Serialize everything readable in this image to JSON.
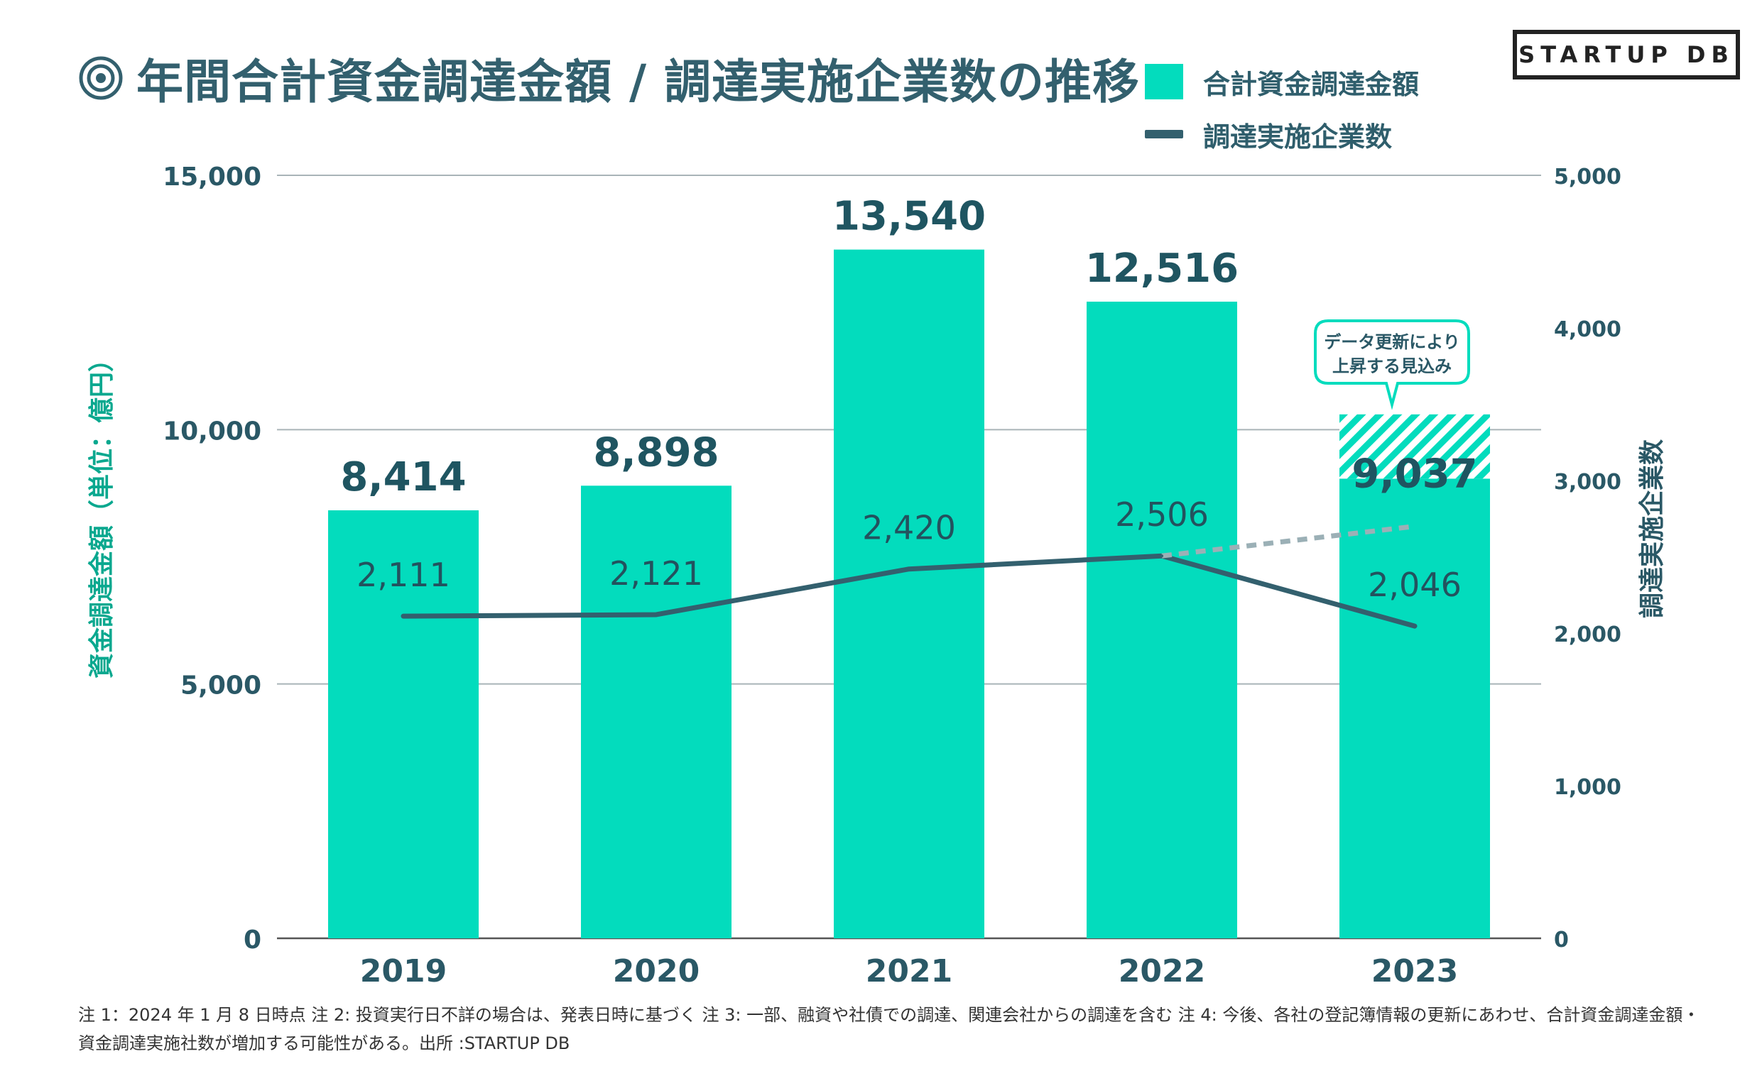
{
  "title": "年間合計資金調達金額 / 調達実施企業数の推移",
  "brand": "STARTUP DB",
  "legend": {
    "bars_label": "合計資金調達金額",
    "line_label": "調達実施企業数"
  },
  "colors": {
    "bar": "#03dcbd",
    "line": "#33606e",
    "text": "#2a5866",
    "grid": "#a9b4b8"
  },
  "annotation": {
    "line1": "データ更新により",
    "line2": "上昇する見込み"
  },
  "footnote": "注 1：2024 年 1 月 8 日時点 注 2: 投資実行日不詳の場合は、発表日時に基づく 注 3: 一部、融資や社債での調達、関連会社からの調達を含む 注 4: 今後、各社の登記簿情報の更新にあわせ、合計資金調達金額・資金調達実施社数が増加する可能性がある。出所 :STARTUP DB",
  "chart_data": {
    "type": "bar",
    "categories": [
      "2019",
      "2020",
      "2021",
      "2022",
      "2023"
    ],
    "series": [
      {
        "name": "合計資金調達金額",
        "axis": "left",
        "values": [
          8414,
          8898,
          13540,
          12516,
          9037
        ],
        "labels": [
          "8,414",
          "8,898",
          "13,540",
          "12,516",
          "9,037"
        ],
        "projected_top_2023": 10300
      },
      {
        "name": "調達実施企業数",
        "type": "line",
        "axis": "right",
        "values": [
          2111,
          2121,
          2420,
          2506,
          2046
        ],
        "labels": [
          "2,111",
          "2,121",
          "2,420",
          "2,506",
          "2,046"
        ],
        "projected_2023": 2700
      }
    ],
    "ylabel": "資金調達金額（単位：億円）",
    "y2label": "調達実施企業数",
    "ylim": [
      0,
      15000
    ],
    "y2lim": [
      0,
      5000
    ],
    "yticks": [
      "0",
      "5,000",
      "10,000",
      "15,000"
    ],
    "y2ticks": [
      "0",
      "1,000",
      "2,000",
      "3,000",
      "4,000",
      "5,000"
    ]
  }
}
